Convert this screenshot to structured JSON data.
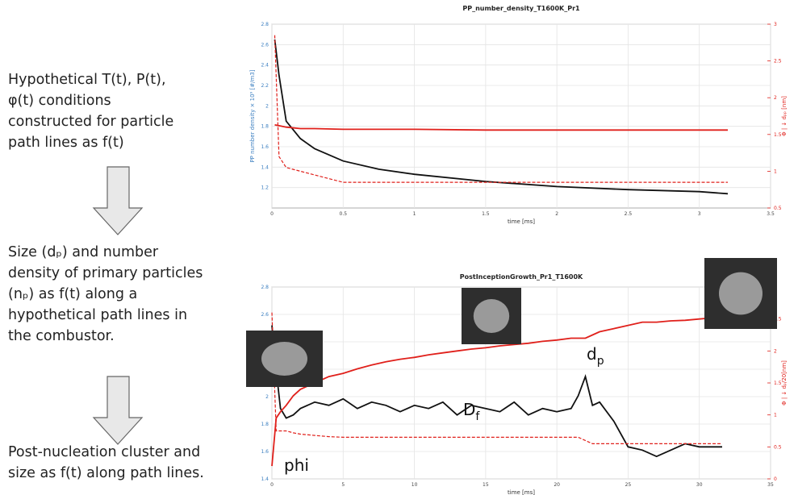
{
  "text": {
    "step1": [
      "Hypothetical T(t), P(t),",
      "φ(t) conditions",
      "constructed for particle",
      "path lines as f(t)"
    ],
    "step2": [
      "Size (dₚ) and number",
      "density of primary particles",
      "(nₚ) as f(t) along a",
      "hypothetical path lines in",
      "the combustor."
    ],
    "step3": [
      "Post-nucleation cluster and",
      "size as f(t) along path lines."
    ]
  },
  "chart_data": [
    {
      "type": "line",
      "title": "PP_number_density_T1600K_Pr1",
      "xlabel": "time [ms]",
      "ylabel": "PP number density × 10⁹ [#/m3]",
      "y2label": "Φ | ↓ dₚₚ [nm]",
      "x": [
        0.02,
        0.05,
        0.1,
        0.2,
        0.3,
        0.5,
        0.75,
        1,
        1.5,
        2,
        2.5,
        3,
        3.2
      ],
      "xlim": [
        0,
        3.5
      ],
      "xticks": [
        0,
        0.5,
        1,
        1.5,
        2,
        2.5,
        3,
        3.5
      ],
      "ylim": [
        1,
        2.8
      ],
      "yticks": [
        1.2,
        1.4,
        1.6,
        1.8,
        2,
        2.2,
        2.4,
        2.6,
        2.8
      ],
      "y2lim": [
        0.5,
        3
      ],
      "y2ticks": [
        0.5,
        1,
        1.5,
        2,
        2.5,
        3
      ],
      "grid": true,
      "series": [
        {
          "name": "number density",
          "color": "#111111",
          "style": "solid",
          "values": [
            2.65,
            2.3,
            1.85,
            1.68,
            1.58,
            1.46,
            1.38,
            1.33,
            1.26,
            1.21,
            1.18,
            1.16,
            1.14
          ]
        },
        {
          "name": "phi",
          "color": "#e0201b",
          "style": "solid",
          "axis": "y2",
          "values": [
            1.63,
            1.62,
            1.6,
            1.58,
            1.58,
            1.57,
            1.57,
            1.57,
            1.56,
            1.56,
            1.56,
            1.56,
            1.56
          ]
        },
        {
          "name": "dpp",
          "color": "#e0201b",
          "style": "dashed",
          "axis": "y2",
          "values": [
            2.85,
            1.2,
            1.05,
            1.0,
            0.95,
            0.85,
            0.85,
            0.85,
            0.85,
            0.85,
            0.85,
            0.85,
            0.85
          ]
        }
      ]
    },
    {
      "type": "line",
      "title": "PostInceptionGrowth_Pr1_T1600K",
      "xlabel": "time [ms]",
      "y2label": "Φ | ↓ dₚ/20[nm]",
      "x": [
        0,
        0.3,
        0.6,
        1,
        1.5,
        2,
        3,
        4,
        5,
        6,
        7,
        8,
        9,
        10,
        11,
        12,
        13,
        14,
        15,
        16,
        17,
        18,
        19,
        20,
        21,
        21.5,
        22,
        22.5,
        23,
        24,
        25,
        26,
        27,
        28,
        29,
        30,
        31,
        31.6
      ],
      "xlim": [
        0,
        35
      ],
      "xticks": [
        0,
        5,
        10,
        15,
        20,
        25,
        30,
        35
      ],
      "ylim": [
        1.4,
        2.8
      ],
      "yticks": [
        1.4,
        1.6,
        1.8,
        2,
        2.2,
        2.4,
        2.6,
        2.8
      ],
      "y2lim": [
        0,
        3
      ],
      "y2ticks": [
        0,
        0.5,
        1,
        1.5,
        2,
        2.5,
        3
      ],
      "grid": true,
      "annotations": [
        {
          "text": "d",
          "sub": "p"
        },
        {
          "text": "D",
          "sub": "f"
        },
        {
          "text": "phi"
        }
      ],
      "series": [
        {
          "name": "Df",
          "color": "#111111",
          "style": "solid",
          "axis": "y2",
          "values": [
            2.4,
            1.7,
            1.1,
            0.95,
            1.0,
            1.1,
            1.2,
            1.15,
            1.25,
            1.1,
            1.2,
            1.15,
            1.05,
            1.15,
            1.1,
            1.2,
            1.0,
            1.15,
            1.1,
            1.05,
            1.2,
            1.0,
            1.1,
            1.05,
            1.1,
            1.3,
            1.6,
            1.15,
            1.2,
            0.9,
            0.5,
            0.45,
            0.35,
            0.45,
            0.55,
            0.5,
            0.5,
            0.5
          ]
        },
        {
          "name": "dp",
          "color": "#e0201b",
          "style": "solid",
          "axis": "y2",
          "values": [
            0.2,
            0.95,
            1.05,
            1.15,
            1.3,
            1.4,
            1.5,
            1.6,
            1.65,
            1.72,
            1.78,
            1.83,
            1.87,
            1.9,
            1.94,
            1.97,
            2.0,
            2.03,
            2.05,
            2.08,
            2.1,
            2.12,
            2.15,
            2.17,
            2.2,
            2.2,
            2.2,
            2.25,
            2.3,
            2.35,
            2.4,
            2.45,
            2.45,
            2.47,
            2.48,
            2.5,
            2.52,
            2.53
          ]
        },
        {
          "name": "phi",
          "color": "#e0201b",
          "style": "dashed",
          "axis": "y2",
          "values": [
            2.6,
            0.75,
            0.75,
            0.75,
            0.72,
            0.7,
            0.68,
            0.66,
            0.65,
            0.65,
            0.65,
            0.65,
            0.65,
            0.65,
            0.65,
            0.65,
            0.65,
            0.65,
            0.65,
            0.65,
            0.65,
            0.65,
            0.65,
            0.65,
            0.65,
            0.65,
            0.6,
            0.55,
            0.55,
            0.55,
            0.55,
            0.55,
            0.55,
            0.55,
            0.55,
            0.55,
            0.55,
            0.55
          ]
        }
      ]
    }
  ]
}
